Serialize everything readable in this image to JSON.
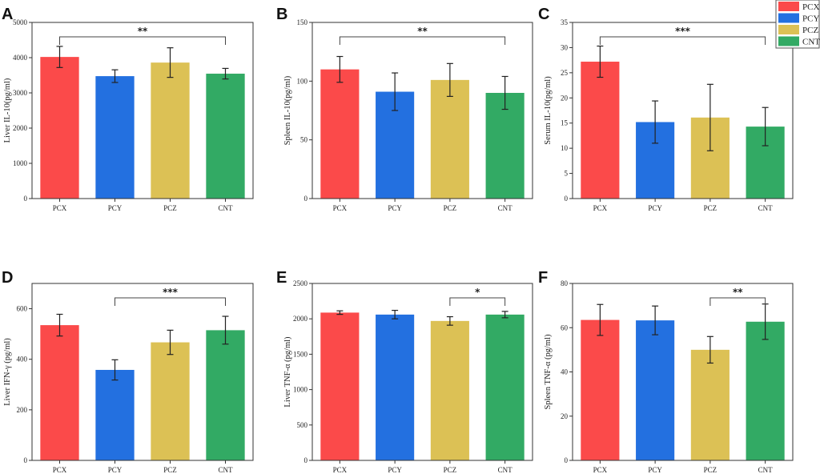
{
  "colors": {
    "PCX": "#fb4a4a",
    "PCY": "#2370e0",
    "PCZ": "#dcc155",
    "CNT": "#32aa64"
  },
  "legend": [
    "PCX",
    "PCY",
    "PCZ",
    "CNT"
  ],
  "chart_data": [
    {
      "panel": "A",
      "type": "bar",
      "ylabel": "Liver IL-10(pg/ml)",
      "categories": [
        "PCX",
        "PCY",
        "PCZ",
        "CNT"
      ],
      "values": [
        4020,
        3475,
        3860,
        3545
      ],
      "errors": [
        300,
        180,
        420,
        150
      ],
      "ylim": [
        0,
        5000
      ],
      "yticks": [
        0,
        1000,
        2000,
        3000,
        4000,
        5000
      ],
      "significance": [
        {
          "from": 0,
          "to": 3,
          "label": "**",
          "level": 5000
        }
      ]
    },
    {
      "panel": "B",
      "type": "bar",
      "ylabel": "Spleen IL-10(pg/ml)",
      "categories": [
        "PCX",
        "PCY",
        "PCZ",
        "CNT"
      ],
      "values": [
        110,
        91,
        101,
        90
      ],
      "errors": [
        11,
        16,
        14,
        14
      ],
      "ylim": [
        0,
        150
      ],
      "yticks": [
        0,
        50,
        100,
        150
      ],
      "significance": [
        {
          "from": 0,
          "to": 3,
          "label": "**",
          "level": 150
        }
      ]
    },
    {
      "panel": "C",
      "type": "bar",
      "ylabel": "Serum IL-10(pg/ml)",
      "categories": [
        "PCX",
        "PCY",
        "PCZ",
        "CNT"
      ],
      "values": [
        27.2,
        15.2,
        16.1,
        14.3
      ],
      "errors": [
        3.1,
        4.2,
        6.6,
        3.8
      ],
      "ylim": [
        0,
        35
      ],
      "yticks": [
        0,
        5,
        10,
        15,
        20,
        25,
        30,
        35
      ],
      "significance": [
        {
          "from": 0,
          "to": 3,
          "label": "***",
          "level": 35
        }
      ]
    },
    {
      "panel": "D",
      "type": "bar",
      "ylabel": "Liver IFN-γ (pg/ml)",
      "categories": [
        "PCX",
        "PCY",
        "PCZ",
        "CNT"
      ],
      "values": [
        535,
        358,
        467,
        515
      ],
      "errors": [
        43,
        40,
        48,
        55
      ],
      "ylim": [
        0,
        700
      ],
      "yticks": [
        0,
        200,
        400,
        600
      ],
      "significance": [
        {
          "from": 1,
          "to": 3,
          "label": "***",
          "level": 700
        }
      ]
    },
    {
      "panel": "E",
      "type": "bar",
      "ylabel": "Liver TNF-α (pg/ml)",
      "categories": [
        "PCX",
        "PCY",
        "PCZ",
        "CNT"
      ],
      "values": [
        2088,
        2060,
        1970,
        2060
      ],
      "errors": [
        25,
        60,
        60,
        45
      ],
      "ylim": [
        0,
        2500
      ],
      "yticks": [
        0,
        500,
        1000,
        1500,
        2000,
        2500
      ],
      "significance": [
        {
          "from": 2,
          "to": 3,
          "label": "*",
          "level": 2500
        }
      ]
    },
    {
      "panel": "F",
      "type": "bar",
      "ylabel": "Spleen TNF-α (pg/ml)",
      "categories": [
        "PCX",
        "PCY",
        "PCZ",
        "CNT"
      ],
      "values": [
        63.5,
        63.3,
        50.0,
        62.7
      ],
      "errors": [
        7,
        6.5,
        6,
        8
      ],
      "ylim": [
        0,
        80
      ],
      "yticks": [
        0,
        20,
        40,
        60,
        80
      ],
      "significance": [
        {
          "from": 2,
          "to": 3,
          "label": "**",
          "level": 80
        }
      ]
    }
  ]
}
